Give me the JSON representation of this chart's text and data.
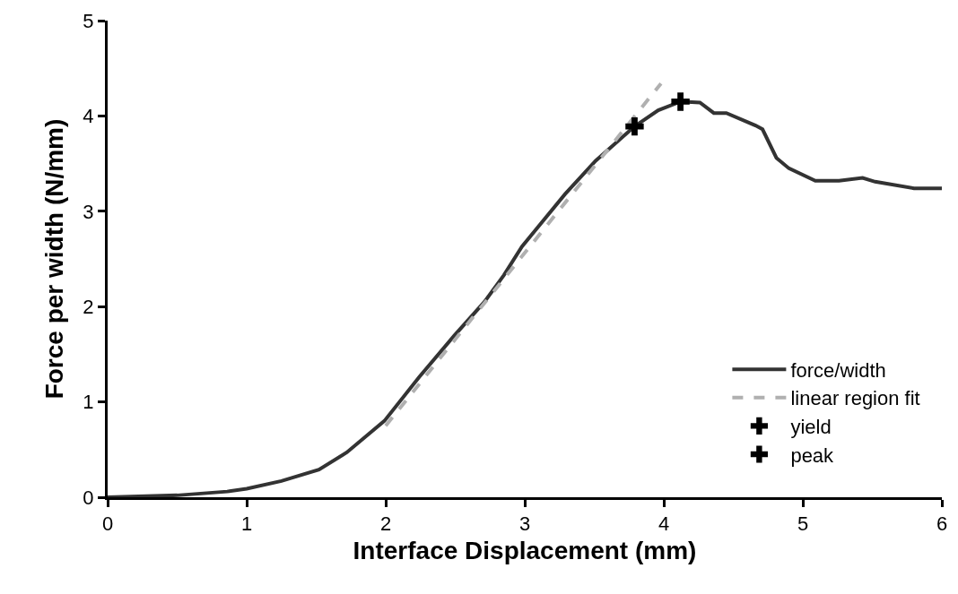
{
  "chart_data": {
    "type": "line",
    "xlabel": "Interface Displacement (mm)",
    "ylabel": "Force per width (N/mm)",
    "xlim": [
      0,
      6
    ],
    "xticks": [
      0,
      1,
      2,
      3,
      4,
      5,
      6
    ],
    "ylim": [
      0,
      5
    ],
    "yticks": [
      0,
      1,
      2,
      3,
      4,
      5
    ],
    "grid": false,
    "legend": "bottom right",
    "series": [
      {
        "name": "force/width",
        "type": "line",
        "color": "#333333",
        "line_style": "solid",
        "marker": "none",
        "x": [
          0,
          0.5,
          0.86,
          1.0,
          1.25,
          1.52,
          1.72,
          1.99,
          2.24,
          2.49,
          2.71,
          2.85,
          2.98,
          3.29,
          3.51,
          3.79,
          3.96,
          4.12,
          4.26,
          4.36,
          4.45,
          4.66,
          4.71,
          4.81,
          4.9,
          5.09,
          5.26,
          5.43,
          5.52,
          5.8,
          5.96,
          6.0
        ],
        "values": [
          0,
          0.02,
          0.06,
          0.09,
          0.17,
          0.29,
          0.47,
          0.8,
          1.26,
          1.69,
          2.05,
          2.33,
          2.63,
          3.18,
          3.53,
          3.89,
          4.06,
          4.15,
          4.14,
          4.03,
          4.03,
          3.9,
          3.86,
          3.56,
          3.45,
          3.32,
          3.32,
          3.35,
          3.31,
          3.24,
          3.24,
          3.24
        ]
      },
      {
        "name": "linear region fit",
        "type": "line",
        "color": "#b0b0b0",
        "line_style": "dashed",
        "marker": "none",
        "x": [
          2.0,
          3.98
        ],
        "values": [
          0.75,
          4.34
        ]
      },
      {
        "name": "yield",
        "type": "scatter",
        "color": "#000000",
        "marker": "cross",
        "x": [
          3.79
        ],
        "values": [
          3.89
        ]
      },
      {
        "name": "peak",
        "type": "scatter",
        "color": "#000000",
        "marker": "cross",
        "x": [
          4.12
        ],
        "values": [
          4.15
        ]
      }
    ]
  }
}
